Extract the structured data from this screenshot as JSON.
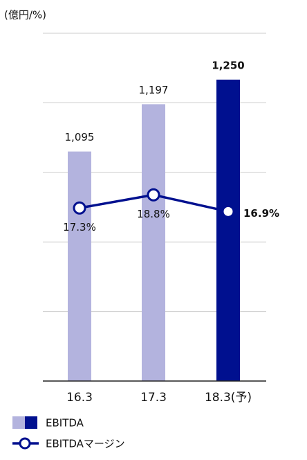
{
  "chart_data": {
    "type": "bar_line",
    "unit_label": "(億円/%)",
    "categories": [
      "16.3",
      "17.3",
      "18.3(予)"
    ],
    "series": [
      {
        "name": "EBITDA",
        "type": "bar",
        "colors": [
          "#b3b3de",
          "#b3b3de",
          "#00108f"
        ],
        "values": [
          1095,
          1197,
          1250
        ],
        "value_labels": [
          "1,095",
          "1,197",
          "1,250"
        ],
        "bold_labels": [
          false,
          false,
          true
        ]
      },
      {
        "name": "EBITDAマージン",
        "type": "line",
        "axis": "y2",
        "color": "#00108f",
        "values": [
          17.3,
          18.8,
          16.9
        ],
        "value_labels": [
          "17.3%",
          "18.8%",
          "16.9%"
        ],
        "bold_labels": [
          false,
          false,
          true
        ]
      }
    ],
    "ylim": [
      600,
      1350
    ],
    "grid_lines": [
      750,
      900,
      1050,
      1200,
      1350
    ],
    "y2lim": [
      -2.4,
      37.2
    ],
    "grid": true
  }
}
